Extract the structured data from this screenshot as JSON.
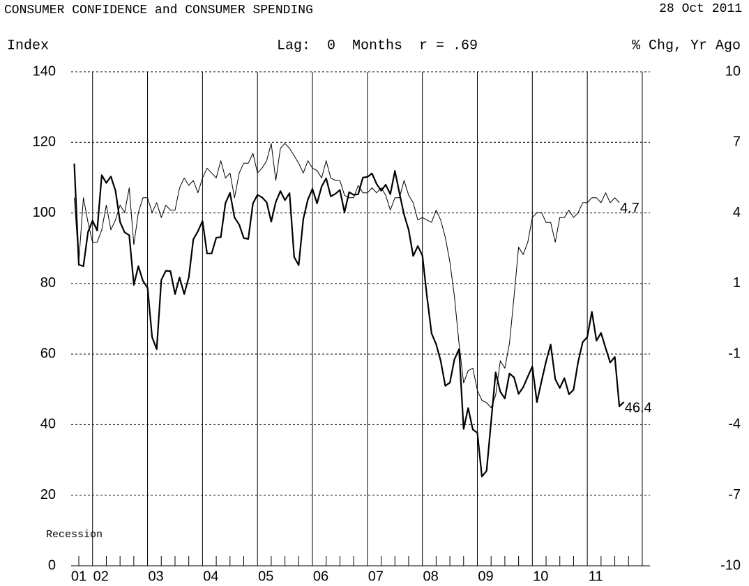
{
  "chart_data": {
    "type": "line",
    "title": "CONSUMER CONFIDENCE and CONSUMER SPENDING",
    "date": "28 Oct 2011",
    "ylabel": "Index",
    "subtitle": "Lag:  0  Months  r = .69",
    "y2label": "% Chg, Yr Ago",
    "annotation": "Recession",
    "xlim": [
      2001.61,
      2012.14
    ],
    "xticks": [
      {
        "value": 2001,
        "label": "01"
      },
      {
        "value": 2002,
        "label": "02"
      },
      {
        "value": 2003,
        "label": "03"
      },
      {
        "value": 2004,
        "label": "04"
      },
      {
        "value": 2005,
        "label": "05"
      },
      {
        "value": 2006,
        "label": "06"
      },
      {
        "value": 2007,
        "label": "07"
      },
      {
        "value": 2008,
        "label": "08"
      },
      {
        "value": 2009,
        "label": "09"
      },
      {
        "value": 2010,
        "label": "10"
      },
      {
        "value": 2011,
        "label": "11"
      }
    ],
    "xgrid": [
      2002,
      2003,
      2004,
      2005,
      2006,
      2007,
      2008,
      2009,
      2010,
      2011,
      2012
    ],
    "xminorticks": [
      2001.75,
      2002.25,
      2002.5,
      2002.75,
      2003.25,
      2003.5,
      2003.75,
      2004.25,
      2004.5,
      2004.75,
      2005.25,
      2005.5,
      2005.75,
      2006.25,
      2006.5,
      2006.75,
      2007.25,
      2007.5,
      2007.75,
      2008.25,
      2008.5,
      2008.75,
      2009.25,
      2009.5,
      2009.75,
      2010.25,
      2010.5,
      2010.75,
      2011.25,
      2011.5,
      2011.75
    ],
    "ylim": [
      0,
      140
    ],
    "yticks": [
      0,
      20,
      40,
      60,
      80,
      100,
      120,
      140
    ],
    "y2lim": [
      -10,
      10
    ],
    "y2ticks": [
      -10,
      {
        "value": -7.143,
        "label": "-7"
      },
      {
        "value": -4.286,
        "label": "-4"
      },
      {
        "value": -1.429,
        "label": "-1"
      },
      {
        "value": 1.429,
        "label": "1"
      },
      {
        "value": 4.286,
        "label": "4"
      },
      {
        "value": 7.143,
        "label": "7"
      },
      10
    ],
    "grid": true,
    "x": [
      2001.667,
      2001.75,
      2001.833,
      2001.917,
      2002.0,
      2002.083,
      2002.167,
      2002.25,
      2002.333,
      2002.417,
      2002.5,
      2002.583,
      2002.667,
      2002.75,
      2002.833,
      2002.917,
      2003.0,
      2003.083,
      2003.167,
      2003.25,
      2003.333,
      2003.417,
      2003.5,
      2003.583,
      2003.667,
      2003.75,
      2003.833,
      2003.917,
      2004.0,
      2004.083,
      2004.167,
      2004.25,
      2004.333,
      2004.417,
      2004.5,
      2004.583,
      2004.667,
      2004.75,
      2004.833,
      2004.917,
      2005.0,
      2005.083,
      2005.167,
      2005.25,
      2005.333,
      2005.417,
      2005.5,
      2005.583,
      2005.667,
      2005.75,
      2005.833,
      2005.917,
      2006.0,
      2006.083,
      2006.167,
      2006.25,
      2006.333,
      2006.417,
      2006.5,
      2006.583,
      2006.667,
      2006.75,
      2006.833,
      2006.917,
      2007.0,
      2007.083,
      2007.167,
      2007.25,
      2007.333,
      2007.417,
      2007.5,
      2007.583,
      2007.667,
      2007.75,
      2007.833,
      2007.917,
      2008.0,
      2008.083,
      2008.167,
      2008.25,
      2008.333,
      2008.417,
      2008.5,
      2008.583,
      2008.667,
      2008.75,
      2008.833,
      2008.917,
      2009.0,
      2009.083,
      2009.167,
      2009.25,
      2009.333,
      2009.417,
      2009.5,
      2009.583,
      2009.667,
      2009.75,
      2009.833,
      2009.917,
      2010.0,
      2010.083,
      2010.167,
      2010.25,
      2010.333,
      2010.417,
      2010.5,
      2010.583,
      2010.667,
      2010.75,
      2010.833,
      2010.917,
      2011.0,
      2011.083,
      2011.167,
      2011.25,
      2011.333,
      2011.417,
      2011.5,
      2011.583,
      2011.667
    ],
    "series": [
      {
        "name": "Consumer Confidence",
        "color": "#000000",
        "width": 2.2,
        "last_label": "46.4",
        "values": [
          114.0,
          85.3,
          84.9,
          94.6,
          97.8,
          95.0,
          110.7,
          108.5,
          110.3,
          106.3,
          97.4,
          94.5,
          93.7,
          79.6,
          84.9,
          80.7,
          78.8,
          64.8,
          61.4,
          81.0,
          83.6,
          83.5,
          77.0,
          81.7,
          77.0,
          81.7,
          92.5,
          94.8,
          97.7,
          88.5,
          88.5,
          93.0,
          93.1,
          102.8,
          105.7,
          98.7,
          96.7,
          92.9,
          92.6,
          102.7,
          105.1,
          104.4,
          103.0,
          97.5,
          103.1,
          106.2,
          103.6,
          105.6,
          87.5,
          85.2,
          98.3,
          103.8,
          106.8,
          102.7,
          107.5,
          109.8,
          104.7,
          105.4,
          106.5,
          100.2,
          105.9,
          105.1,
          105.3,
          110.0,
          110.2,
          111.2,
          108.2,
          106.3,
          108.0,
          105.3,
          111.9,
          105.6,
          99.5,
          95.2,
          87.8,
          90.6,
          87.9,
          76.4,
          65.9,
          62.8,
          58.1,
          51.0,
          51.9,
          58.5,
          61.4,
          38.8,
          44.7,
          38.6,
          37.7,
          25.3,
          26.9,
          40.8,
          54.8,
          49.3,
          47.4,
          54.5,
          53.4,
          48.7,
          50.6,
          53.6,
          56.5,
          46.4,
          52.3,
          57.9,
          62.7,
          52.9,
          50.4,
          53.2,
          48.6,
          49.9,
          57.8,
          63.4,
          64.8,
          72.0,
          63.8,
          66.0,
          61.7,
          57.6,
          59.2,
          45.2,
          46.4
        ]
      },
      {
        "name": "Consumer Spending",
        "color": "#000000",
        "width": 1,
        "axis": "y2",
        "last_label": "4.7",
        "values": [
          4.9,
          2.3,
          4.9,
          3.9,
          3.1,
          3.1,
          3.6,
          4.6,
          3.6,
          4.0,
          4.6,
          4.3,
          5.3,
          3.0,
          4.3,
          4.9,
          4.9,
          4.3,
          4.7,
          4.1,
          4.6,
          4.4,
          4.4,
          5.3,
          5.7,
          5.4,
          5.6,
          5.1,
          5.7,
          6.1,
          5.9,
          5.7,
          6.4,
          5.7,
          5.9,
          4.9,
          5.9,
          6.3,
          6.3,
          6.7,
          5.9,
          6.1,
          6.4,
          7.1,
          5.6,
          6.9,
          7.1,
          6.9,
          6.6,
          6.3,
          5.9,
          6.4,
          6.1,
          6.0,
          5.7,
          6.4,
          5.7,
          5.6,
          5.6,
          5.0,
          4.9,
          4.9,
          5.4,
          5.1,
          5.1,
          5.3,
          5.1,
          5.3,
          5.0,
          4.4,
          4.9,
          4.9,
          5.6,
          5.0,
          4.7,
          4.0,
          4.1,
          4.0,
          3.9,
          4.4,
          4.0,
          3.3,
          2.3,
          0.9,
          -1.0,
          -2.6,
          -2.1,
          -2.0,
          -2.9,
          -3.3,
          -3.4,
          -3.6,
          -3.1,
          -1.7,
          -2.0,
          -1.0,
          0.9,
          2.9,
          2.6,
          3.1,
          4.1,
          4.3,
          4.3,
          3.9,
          3.9,
          3.1,
          4.1,
          4.1,
          4.4,
          4.1,
          4.3,
          4.7,
          4.7,
          4.9,
          4.9,
          4.7,
          5.1,
          4.7,
          4.9,
          4.7,
          null
        ]
      }
    ]
  }
}
